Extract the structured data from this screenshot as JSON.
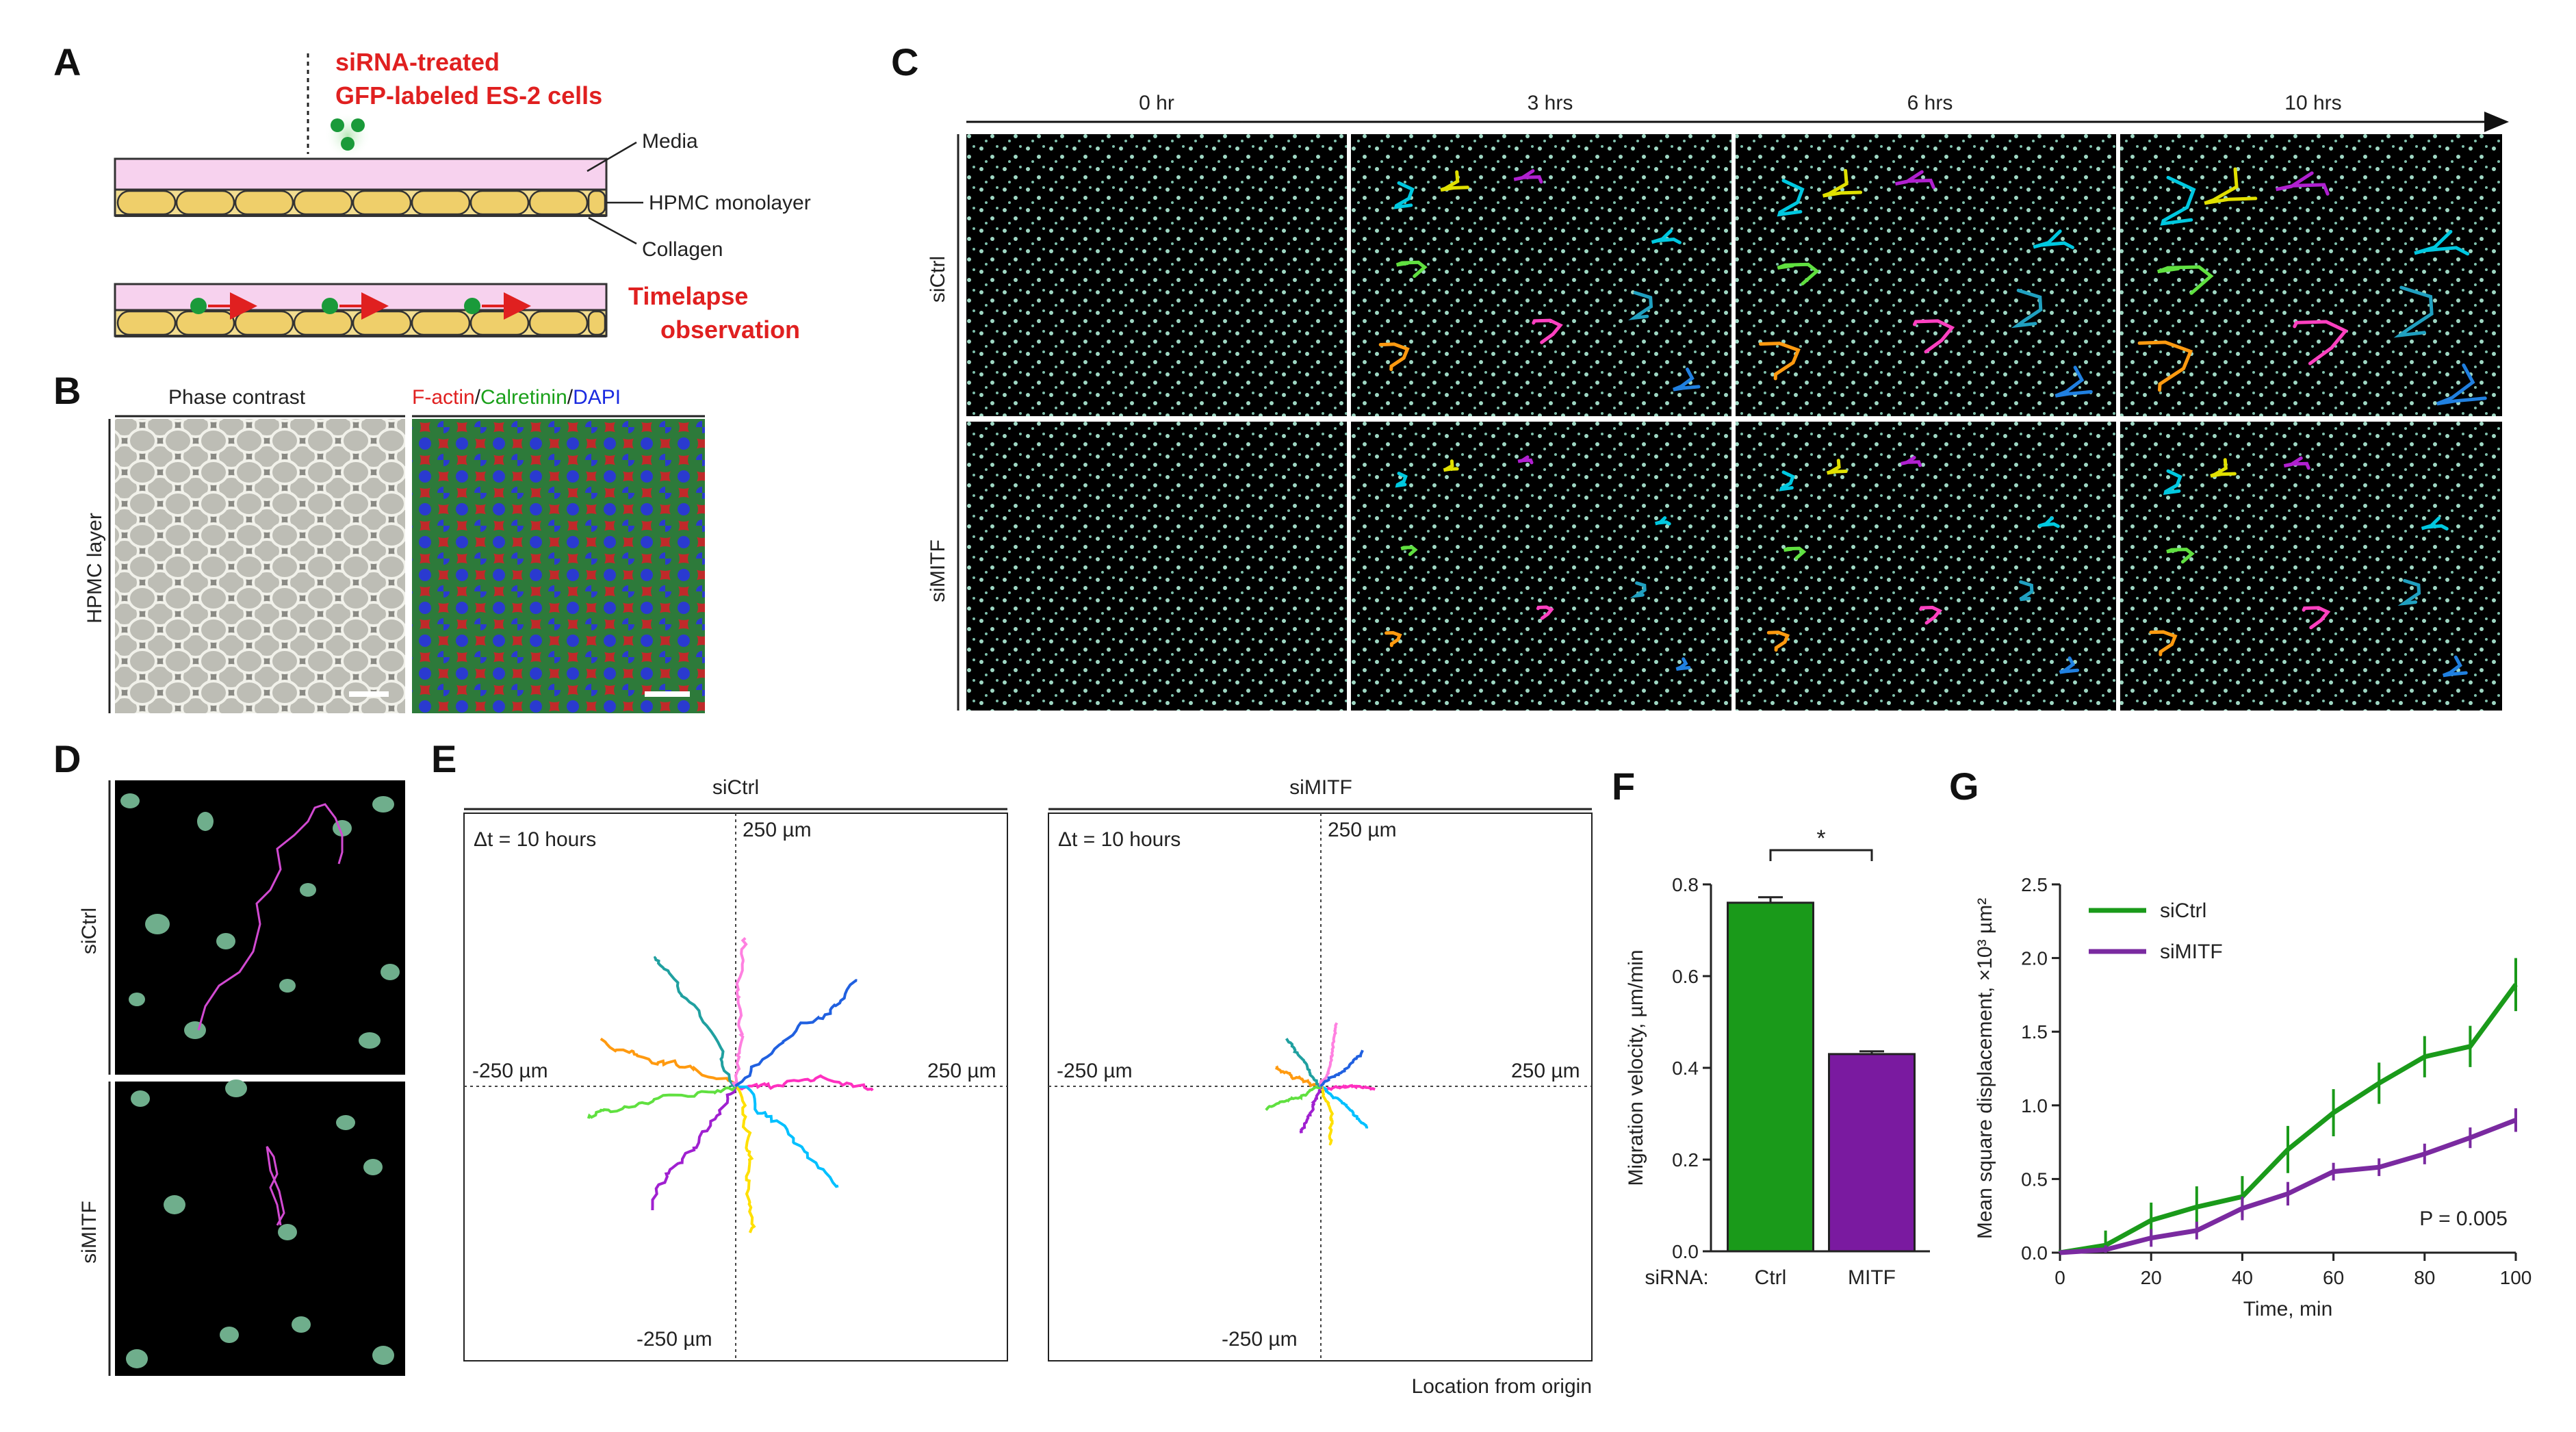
{
  "panels": {
    "A": {
      "letter": "A",
      "cells_label_line1": "siRNA-treated",
      "cells_label_line2": "GFP-labeled ES-2 cells",
      "layers": [
        "Media",
        "HPMC monolayer",
        "Collagen"
      ],
      "timelapse_line1": "Timelapse",
      "timelapse_line2": "observation"
    },
    "B": {
      "letter": "B",
      "left_title": "Phase contrast",
      "right_title_parts": [
        {
          "text": "F-actin",
          "color": "#e02020"
        },
        {
          "text": "/",
          "color": "#222222"
        },
        {
          "text": "Calretinin",
          "color": "#1aa01a"
        },
        {
          "text": "/",
          "color": "#222222"
        },
        {
          "text": "DAPI",
          "color": "#1a2ae0"
        }
      ],
      "row_label": "HPMC layer"
    },
    "C": {
      "letter": "C",
      "timepoints": [
        "0 hr",
        "3 hrs",
        "6 hrs",
        "10 hrs"
      ],
      "row_labels": [
        "siCtrl",
        "siMITF"
      ]
    },
    "D": {
      "letter": "D",
      "row_labels": [
        "siCtrl",
        "siMITF"
      ]
    },
    "E": {
      "letter": "E",
      "plots": [
        {
          "title": "siCtrl",
          "dt": "Δt = 10 hours",
          "top": "250 µm",
          "bottom": "-250 µm",
          "left": "-250 µm",
          "right": "250 µm"
        },
        {
          "title": "siMITF",
          "dt": "Δt = 10 hours",
          "top": "250 µm",
          "bottom": "-250 µm",
          "left": "-250 µm",
          "right": "250 µm"
        }
      ],
      "footer": "Location from origin"
    },
    "F": {
      "letter": "F"
    },
    "G": {
      "letter": "G"
    }
  },
  "chart_data": [
    {
      "id": "F",
      "type": "bar",
      "categories": [
        "Ctrl",
        "MITF"
      ],
      "category_prefix": "siRNA:",
      "values": [
        0.76,
        0.43
      ],
      "errors": [
        0.012,
        0.006
      ],
      "colors": [
        "#1a9a1a",
        "#7a1aa0"
      ],
      "ylabel": "Migration velocity, µm/min",
      "ylim": [
        0,
        0.8
      ],
      "yticks": [
        "0.0",
        "0.2",
        "0.4",
        "0.6",
        "0.8"
      ],
      "significance": "*"
    },
    {
      "id": "G",
      "type": "line",
      "x": [
        0,
        10,
        20,
        30,
        40,
        50,
        60,
        70,
        80,
        90,
        100
      ],
      "series": [
        {
          "name": "siCtrl",
          "color": "#1a9a1a",
          "values": [
            0.0,
            0.05,
            0.22,
            0.31,
            0.38,
            0.7,
            0.95,
            1.15,
            1.33,
            1.4,
            1.82
          ],
          "errors": [
            0.02,
            0.1,
            0.12,
            0.14,
            0.14,
            0.16,
            0.16,
            0.14,
            0.14,
            0.14,
            0.18
          ]
        },
        {
          "name": "siMITF",
          "color": "#7a2aa0",
          "values": [
            0.0,
            0.02,
            0.1,
            0.15,
            0.3,
            0.4,
            0.55,
            0.58,
            0.67,
            0.78,
            0.9
          ],
          "errors": [
            0.01,
            0.03,
            0.06,
            0.06,
            0.08,
            0.08,
            0.06,
            0.06,
            0.07,
            0.07,
            0.08
          ]
        }
      ],
      "xlabel": "Time, min",
      "ylabel": "Mean square displacement, ×10³ µm²",
      "xlim": [
        0,
        100
      ],
      "ylim": [
        0,
        2.5
      ],
      "xticks": [
        "0",
        "20",
        "40",
        "60",
        "80",
        "100"
      ],
      "yticks": [
        "0.0",
        "0.5",
        "1.0",
        "1.5",
        "2.0",
        "2.5"
      ],
      "annotation": "P = 0.005",
      "legend_position": "top-left"
    }
  ]
}
